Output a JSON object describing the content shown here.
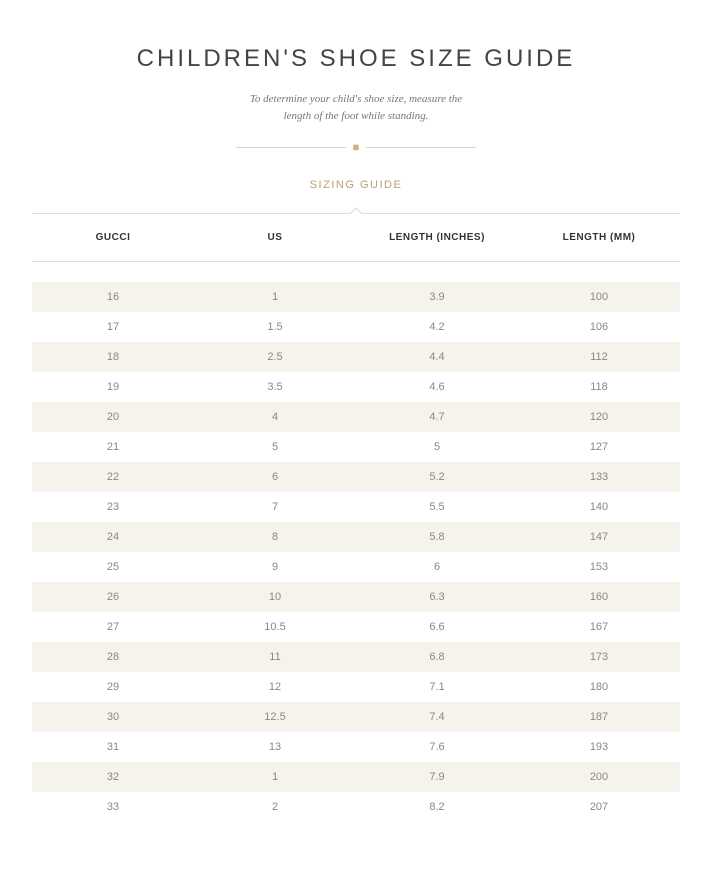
{
  "title": "CHILDREN'S SHOE SIZE GUIDE",
  "subtitle_line1": "To determine your child's shoe size, measure the",
  "subtitle_line2": "length of the foot while standing.",
  "tab_label": "SIZING GUIDE",
  "colors": {
    "accent": "#b9a16b",
    "row_stripe": "#f6f3ed",
    "divider": "#e2ddd3",
    "title": "#444444",
    "body_text": "#888888",
    "header_text": "#333333",
    "background": "#ffffff"
  },
  "table": {
    "columns": [
      "GUCCI",
      "US",
      "LENGTH (INCHES)",
      "LENGTH (MM)"
    ],
    "rows": [
      [
        "16",
        "1",
        "3.9",
        "100"
      ],
      [
        "17",
        "1.5",
        "4.2",
        "106"
      ],
      [
        "18",
        "2.5",
        "4.4",
        "112"
      ],
      [
        "19",
        "3.5",
        "4.6",
        "118"
      ],
      [
        "20",
        "4",
        "4.7",
        "120"
      ],
      [
        "21",
        "5",
        "5",
        "127"
      ],
      [
        "22",
        "6",
        "5.2",
        "133"
      ],
      [
        "23",
        "7",
        "5.5",
        "140"
      ],
      [
        "24",
        "8",
        "5.8",
        "147"
      ],
      [
        "25",
        "9",
        "6",
        "153"
      ],
      [
        "26",
        "10",
        "6.3",
        "160"
      ],
      [
        "27",
        "10.5",
        "6.6",
        "167"
      ],
      [
        "28",
        "11",
        "6.8",
        "173"
      ],
      [
        "29",
        "12",
        "7.1",
        "180"
      ],
      [
        "30",
        "12.5",
        "7.4",
        "187"
      ],
      [
        "31",
        "13",
        "7.6",
        "193"
      ],
      [
        "32",
        "1",
        "7.9",
        "200"
      ],
      [
        "33",
        "2",
        "8.2",
        "207"
      ]
    ]
  }
}
